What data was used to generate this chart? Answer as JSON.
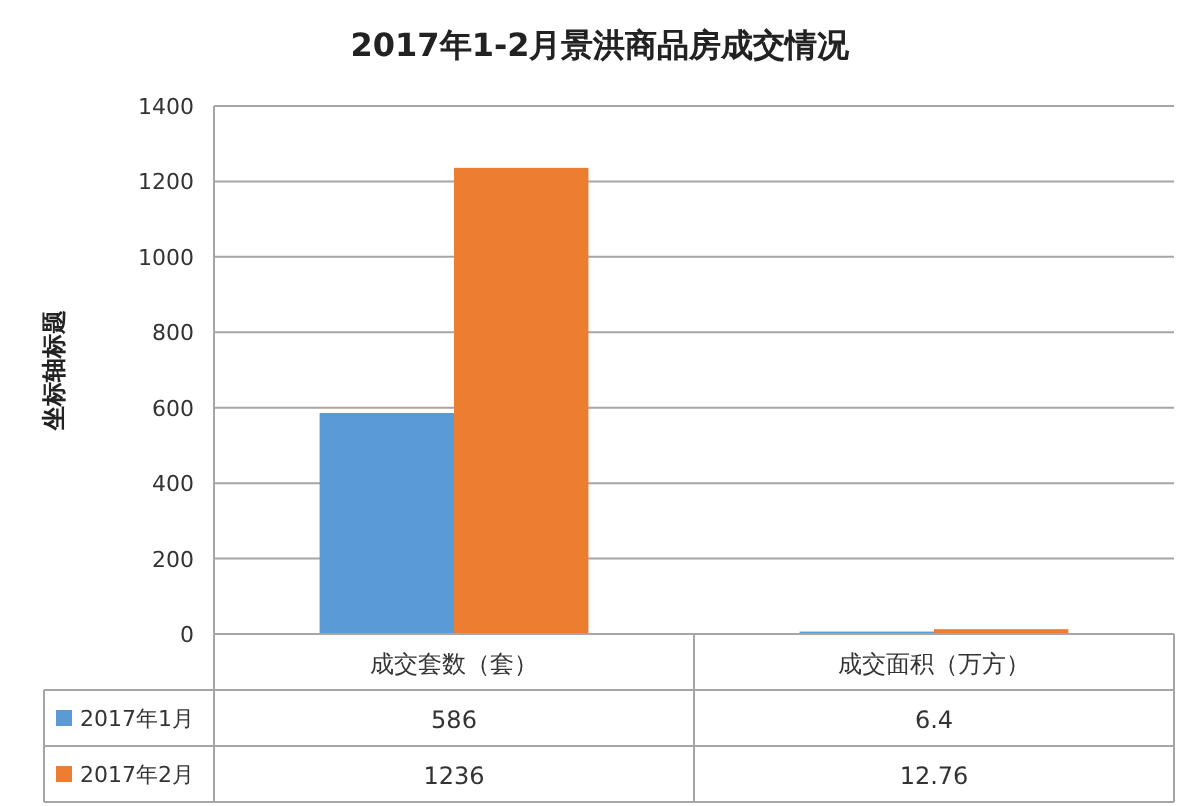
{
  "chart_data": {
    "type": "bar",
    "title": "2017年1-2月景洪商品房成交情况",
    "ylabel": "坐标轴标题",
    "categories": [
      "成交套数（套）",
      "成交面积（万方）"
    ],
    "series": [
      {
        "name": "2017年1月",
        "color": "#5b9bd5",
        "values": [
          586,
          6.4
        ]
      },
      {
        "name": "2017年2月",
        "color": "#ed7d31",
        "values": [
          1236,
          12.76
        ]
      }
    ],
    "ylim": [
      0,
      1400
    ],
    "yticks": [
      0,
      200,
      400,
      600,
      800,
      1000,
      1200,
      1400
    ],
    "grid": "y",
    "legend": "bottom",
    "data_labels": true
  }
}
